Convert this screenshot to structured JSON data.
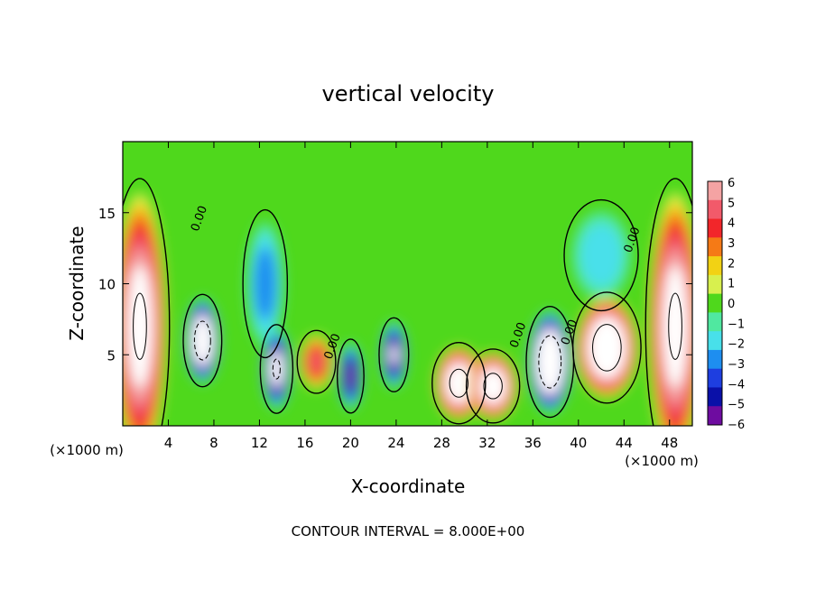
{
  "chart_data": {
    "type": "heatmap",
    "title": "vertical velocity",
    "xlabel": "X-coordinate",
    "ylabel": "Z-coordinate",
    "x_unit": "(×1000 m)",
    "y_unit": "(×1000 m)",
    "footer": "CONTOUR INTERVAL = 8.000E+00",
    "xlim": [
      0,
      50
    ],
    "ylim": [
      0,
      20
    ],
    "x_ticks": [
      4,
      8,
      12,
      16,
      20,
      24,
      28,
      32,
      36,
      40,
      44,
      48
    ],
    "y_ticks": [
      5,
      10,
      15
    ],
    "colorbar": {
      "ticks": [
        6,
        5,
        4,
        3,
        2,
        1,
        0,
        -1,
        -2,
        -3,
        -4,
        -5,
        -6
      ],
      "colors": [
        "#f4a3a3",
        "#f25a6a",
        "#f2262a",
        "#f57a16",
        "#f2d214",
        "#d8f04e",
        "#4fd81c",
        "#50e8a0",
        "#48e0ea",
        "#1e8ef0",
        "#1e3ee0",
        "#0a10a8",
        "#6e0ca0"
      ],
      "legend_position": "right"
    },
    "contour_labels": [
      {
        "x": 7,
        "y": 14.5,
        "text": "0.00"
      },
      {
        "x": 18.7,
        "y": 5.5,
        "text": "0.00"
      },
      {
        "x": 35,
        "y": 6.3,
        "text": "0.00"
      },
      {
        "x": 39.5,
        "y": 6.5,
        "text": "0.00"
      },
      {
        "x": 45,
        "y": 13,
        "text": "0.00"
      }
    ],
    "features": [
      {
        "sign": "positive",
        "x": 1.5,
        "y": 7,
        "rx": 2,
        "ry": 8,
        "peak": 8
      },
      {
        "sign": "negative",
        "x": 7,
        "y": 6,
        "rx": 1.3,
        "ry": 2.5,
        "peak": -10
      },
      {
        "sign": "negative",
        "x": 12.5,
        "y": 10,
        "rx": 1.5,
        "ry": 4,
        "peak": -3.5
      },
      {
        "sign": "negative",
        "x": 13.5,
        "y": 4,
        "rx": 1.1,
        "ry": 2.4,
        "peak": -8
      },
      {
        "sign": "positive",
        "x": 17,
        "y": 4.5,
        "rx": 1.3,
        "ry": 1.7,
        "peak": 5
      },
      {
        "sign": "negative",
        "x": 20,
        "y": 3.5,
        "rx": 0.9,
        "ry": 2,
        "peak": -6.5
      },
      {
        "sign": "negative",
        "x": 23.8,
        "y": 5,
        "rx": 1,
        "ry": 2,
        "peak": -7
      },
      {
        "sign": "positive",
        "x": 29.5,
        "y": 3,
        "rx": 1.8,
        "ry": 2.2,
        "peak": 9
      },
      {
        "sign": "positive",
        "x": 32.5,
        "y": 2.8,
        "rx": 1.8,
        "ry": 2,
        "peak": 9
      },
      {
        "sign": "negative",
        "x": 37.5,
        "y": 4.5,
        "rx": 1.6,
        "ry": 3,
        "peak": -11
      },
      {
        "sign": "positive",
        "x": 42.5,
        "y": 5.5,
        "rx": 2.3,
        "ry": 3,
        "peak": 10
      },
      {
        "sign": "negative",
        "x": 42,
        "y": 12,
        "rx": 2.5,
        "ry": 3,
        "peak": -2.5
      },
      {
        "sign": "positive",
        "x": 48.5,
        "y": 7,
        "rx": 2,
        "ry": 8,
        "peak": 8
      }
    ]
  }
}
